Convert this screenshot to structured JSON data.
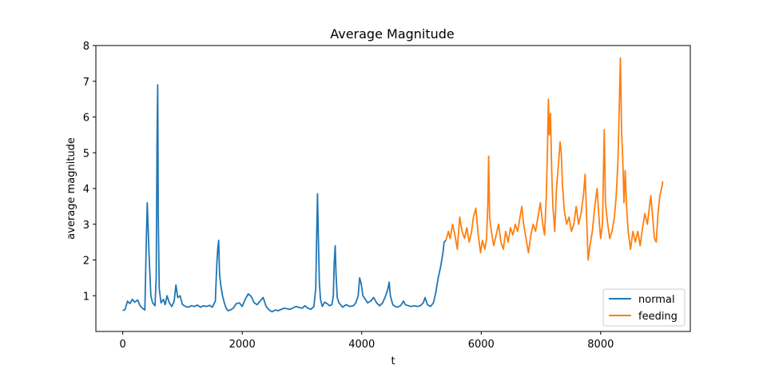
{
  "chart_data": {
    "type": "line",
    "title": "Average Magnitude",
    "xlabel": "t",
    "ylabel": "average magnitude",
    "xlim": [
      -450,
      9500
    ],
    "ylim": [
      0,
      8
    ],
    "xticks": [
      0,
      2000,
      4000,
      6000,
      8000
    ],
    "yticks": [
      1,
      2,
      3,
      4,
      5,
      6,
      7,
      8
    ],
    "grid": false,
    "legend": "lower right",
    "series": [
      {
        "name": "normal",
        "color": "#1f77b4",
        "points": [
          [
            0,
            0.58
          ],
          [
            40,
            0.62
          ],
          [
            80,
            0.85
          ],
          [
            120,
            0.78
          ],
          [
            160,
            0.9
          ],
          [
            200,
            0.82
          ],
          [
            250,
            0.88
          ],
          [
            290,
            0.72
          ],
          [
            330,
            0.65
          ],
          [
            370,
            0.6
          ],
          [
            395,
            2.6
          ],
          [
            410,
            3.6
          ],
          [
            425,
            2.9
          ],
          [
            440,
            2.2
          ],
          [
            470,
            1.0
          ],
          [
            500,
            0.8
          ],
          [
            540,
            0.72
          ],
          [
            560,
            1.5
          ],
          [
            575,
            5.5
          ],
          [
            585,
            6.9
          ],
          [
            595,
            3.2
          ],
          [
            610,
            1.2
          ],
          [
            640,
            0.8
          ],
          [
            680,
            0.9
          ],
          [
            710,
            0.75
          ],
          [
            740,
            1.0
          ],
          [
            780,
            0.8
          ],
          [
            820,
            0.7
          ],
          [
            860,
            0.85
          ],
          [
            890,
            1.3
          ],
          [
            920,
            0.95
          ],
          [
            960,
            1.0
          ],
          [
            1000,
            0.75
          ],
          [
            1050,
            0.7
          ],
          [
            1100,
            0.68
          ],
          [
            1150,
            0.72
          ],
          [
            1200,
            0.7
          ],
          [
            1250,
            0.74
          ],
          [
            1300,
            0.68
          ],
          [
            1350,
            0.72
          ],
          [
            1400,
            0.7
          ],
          [
            1450,
            0.73
          ],
          [
            1500,
            0.68
          ],
          [
            1550,
            0.85
          ],
          [
            1575,
            1.9
          ],
          [
            1590,
            2.3
          ],
          [
            1605,
            2.55
          ],
          [
            1620,
            1.6
          ],
          [
            1640,
            1.3
          ],
          [
            1670,
            1.0
          ],
          [
            1700,
            0.8
          ],
          [
            1730,
            0.65
          ],
          [
            1760,
            0.58
          ],
          [
            1800,
            0.6
          ],
          [
            1850,
            0.65
          ],
          [
            1900,
            0.78
          ],
          [
            1950,
            0.8
          ],
          [
            2000,
            0.7
          ],
          [
            2050,
            0.9
          ],
          [
            2100,
            1.05
          ],
          [
            2150,
            0.98
          ],
          [
            2200,
            0.8
          ],
          [
            2250,
            0.75
          ],
          [
            2300,
            0.85
          ],
          [
            2350,
            0.95
          ],
          [
            2400,
            0.7
          ],
          [
            2450,
            0.6
          ],
          [
            2500,
            0.55
          ],
          [
            2550,
            0.6
          ],
          [
            2600,
            0.58
          ],
          [
            2700,
            0.65
          ],
          [
            2800,
            0.62
          ],
          [
            2900,
            0.7
          ],
          [
            3000,
            0.65
          ],
          [
            3050,
            0.72
          ],
          [
            3100,
            0.65
          ],
          [
            3150,
            0.62
          ],
          [
            3200,
            0.7
          ],
          [
            3230,
            1.2
          ],
          [
            3245,
            2.6
          ],
          [
            3260,
            3.85
          ],
          [
            3275,
            2.6
          ],
          [
            3290,
            1.4
          ],
          [
            3310,
            0.9
          ],
          [
            3340,
            0.7
          ],
          [
            3380,
            0.82
          ],
          [
            3420,
            0.78
          ],
          [
            3460,
            0.72
          ],
          [
            3500,
            0.75
          ],
          [
            3525,
            1.0
          ],
          [
            3540,
            1.9
          ],
          [
            3555,
            2.4
          ],
          [
            3570,
            1.6
          ],
          [
            3590,
            0.95
          ],
          [
            3620,
            0.8
          ],
          [
            3680,
            0.68
          ],
          [
            3740,
            0.75
          ],
          [
            3800,
            0.7
          ],
          [
            3860,
            0.72
          ],
          [
            3900,
            0.8
          ],
          [
            3940,
            1.0
          ],
          [
            3965,
            1.5
          ],
          [
            3990,
            1.35
          ],
          [
            4020,
            1.0
          ],
          [
            4060,
            0.9
          ],
          [
            4100,
            0.8
          ],
          [
            4150,
            0.85
          ],
          [
            4200,
            0.95
          ],
          [
            4250,
            0.8
          ],
          [
            4300,
            0.72
          ],
          [
            4350,
            0.8
          ],
          [
            4400,
            1.0
          ],
          [
            4440,
            1.2
          ],
          [
            4460,
            1.38
          ],
          [
            4480,
            1.0
          ],
          [
            4520,
            0.75
          ],
          [
            4560,
            0.7
          ],
          [
            4600,
            0.68
          ],
          [
            4650,
            0.72
          ],
          [
            4700,
            0.85
          ],
          [
            4730,
            0.75
          ],
          [
            4780,
            0.72
          ],
          [
            4830,
            0.7
          ],
          [
            4880,
            0.72
          ],
          [
            4930,
            0.7
          ],
          [
            4980,
            0.72
          ],
          [
            5030,
            0.8
          ],
          [
            5060,
            0.95
          ],
          [
            5100,
            0.75
          ],
          [
            5150,
            0.7
          ],
          [
            5200,
            0.8
          ],
          [
            5240,
            1.1
          ],
          [
            5280,
            1.5
          ],
          [
            5320,
            1.8
          ],
          [
            5360,
            2.2
          ],
          [
            5380,
            2.5
          ],
          [
            5410,
            2.55
          ]
        ]
      },
      {
        "name": "feeding",
        "color": "#ff7f0e",
        "points": [
          [
            5410,
            2.55
          ],
          [
            5450,
            2.8
          ],
          [
            5480,
            2.6
          ],
          [
            5520,
            3.0
          ],
          [
            5560,
            2.7
          ],
          [
            5600,
            2.3
          ],
          [
            5640,
            3.2
          ],
          [
            5680,
            2.8
          ],
          [
            5720,
            2.6
          ],
          [
            5760,
            2.9
          ],
          [
            5800,
            2.5
          ],
          [
            5840,
            2.8
          ],
          [
            5870,
            3.2
          ],
          [
            5910,
            3.45
          ],
          [
            5950,
            2.7
          ],
          [
            5990,
            2.2
          ],
          [
            6020,
            2.55
          ],
          [
            6060,
            2.3
          ],
          [
            6090,
            2.6
          ],
          [
            6110,
            3.5
          ],
          [
            6125,
            4.9
          ],
          [
            6140,
            3.2
          ],
          [
            6170,
            2.8
          ],
          [
            6210,
            2.4
          ],
          [
            6250,
            2.7
          ],
          [
            6290,
            3.0
          ],
          [
            6330,
            2.5
          ],
          [
            6370,
            2.3
          ],
          [
            6410,
            2.8
          ],
          [
            6450,
            2.5
          ],
          [
            6490,
            2.9
          ],
          [
            6530,
            2.7
          ],
          [
            6570,
            3.0
          ],
          [
            6610,
            2.8
          ],
          [
            6650,
            3.2
          ],
          [
            6680,
            3.5
          ],
          [
            6710,
            3.0
          ],
          [
            6750,
            2.6
          ],
          [
            6790,
            2.2
          ],
          [
            6830,
            2.7
          ],
          [
            6870,
            3.0
          ],
          [
            6910,
            2.8
          ],
          [
            6950,
            3.2
          ],
          [
            6990,
            3.6
          ],
          [
            7030,
            3.0
          ],
          [
            7060,
            2.7
          ],
          [
            7090,
            3.8
          ],
          [
            7110,
            5.2
          ],
          [
            7125,
            6.5
          ],
          [
            7140,
            5.5
          ],
          [
            7160,
            6.1
          ],
          [
            7180,
            4.5
          ],
          [
            7200,
            3.5
          ],
          [
            7230,
            2.8
          ],
          [
            7260,
            4.0
          ],
          [
            7290,
            4.6
          ],
          [
            7320,
            5.3
          ],
          [
            7340,
            5.0
          ],
          [
            7360,
            4.1
          ],
          [
            7390,
            3.4
          ],
          [
            7430,
            3.0
          ],
          [
            7470,
            3.2
          ],
          [
            7510,
            2.8
          ],
          [
            7550,
            3.0
          ],
          [
            7590,
            3.5
          ],
          [
            7630,
            3.0
          ],
          [
            7670,
            3.3
          ],
          [
            7710,
            3.8
          ],
          [
            7740,
            4.4
          ],
          [
            7760,
            3.4
          ],
          [
            7790,
            2.0
          ],
          [
            7820,
            2.4
          ],
          [
            7860,
            2.8
          ],
          [
            7900,
            3.5
          ],
          [
            7940,
            4.0
          ],
          [
            7970,
            3.2
          ],
          [
            8000,
            2.6
          ],
          [
            8030,
            3.0
          ],
          [
            8060,
            5.65
          ],
          [
            8080,
            3.6
          ],
          [
            8110,
            3.1
          ],
          [
            8150,
            2.6
          ],
          [
            8190,
            2.8
          ],
          [
            8230,
            3.2
          ],
          [
            8260,
            3.8
          ],
          [
            8290,
            4.8
          ],
          [
            8310,
            6.2
          ],
          [
            8330,
            7.65
          ],
          [
            8350,
            5.6
          ],
          [
            8370,
            4.8
          ],
          [
            8390,
            3.6
          ],
          [
            8410,
            4.5
          ],
          [
            8430,
            3.6
          ],
          [
            8460,
            2.8
          ],
          [
            8500,
            2.3
          ],
          [
            8540,
            2.8
          ],
          [
            8580,
            2.5
          ],
          [
            8620,
            2.8
          ],
          [
            8660,
            2.4
          ],
          [
            8700,
            2.9
          ],
          [
            8740,
            3.3
          ],
          [
            8780,
            3.0
          ],
          [
            8810,
            3.4
          ],
          [
            8840,
            3.8
          ],
          [
            8870,
            3.2
          ],
          [
            8900,
            2.6
          ],
          [
            8930,
            2.5
          ],
          [
            8960,
            3.3
          ],
          [
            8990,
            3.8
          ],
          [
            9020,
            4.0
          ],
          [
            9040,
            4.2
          ]
        ]
      }
    ]
  }
}
